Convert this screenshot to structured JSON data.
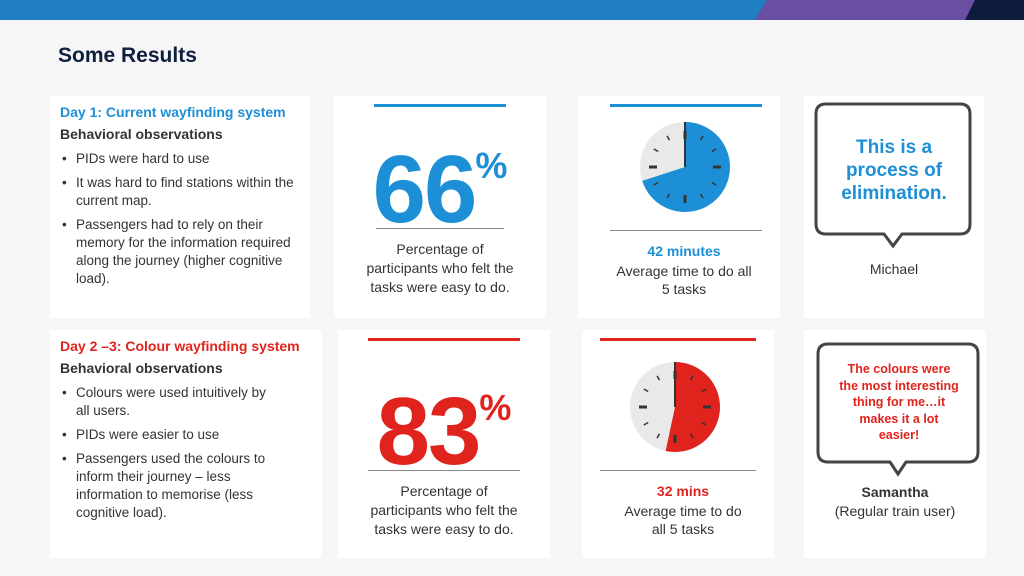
{
  "slide": {
    "title": "Some Results"
  },
  "colors": {
    "day1": "#1d8fd6",
    "day2": "#e0231c",
    "banner": "#1f7fc2",
    "title": "#0f1f3d"
  },
  "day1": {
    "heading": "Day 1: Current wayfinding system",
    "subheading": "Behavioral observations",
    "bullets": [
      "PIDs were hard to use",
      "It was hard to find stations within the current map.",
      "Passengers had to rely on their memory for the information required along the journey (higher cognitive load)."
    ],
    "percent": {
      "number": "66",
      "symbol": "%",
      "value": 66,
      "caption": "Percentage of participants who felt the tasks were easy to do."
    },
    "time": {
      "minutes_label": "42 minutes",
      "value_minutes": 42,
      "caption": "Average time to do all 5 tasks"
    },
    "quote": {
      "text": "This is a process of elimination.",
      "person": "Michael",
      "person_note": ""
    }
  },
  "day2": {
    "heading": "Day 2 –3: Colour wayfinding system",
    "subheading": "Behavioral observations",
    "bullets": [
      "Colours were used intuitively by all users.",
      "PIDs were easier to use",
      "Passengers used the colours to inform their journey – less information to memorise (less cognitive load)."
    ],
    "percent": {
      "number": "83",
      "symbol": "%",
      "value": 83,
      "caption": "Percentage of participants who felt the tasks were easy to do."
    },
    "time": {
      "minutes_label": "32 mins",
      "value_minutes": 32,
      "caption": "Average time to do all 5 tasks"
    },
    "quote": {
      "text": "The colours were the most interesting thing for me…it makes it a lot easier!",
      "person": "Samantha",
      "person_note": "(Regular train user)"
    }
  }
}
